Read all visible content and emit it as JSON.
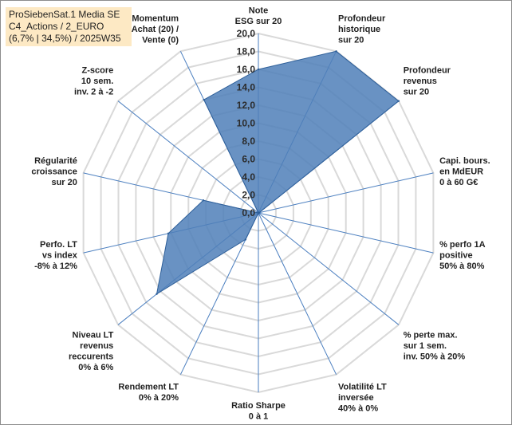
{
  "title_lines": [
    "ProSiebenSat.1 Media SE",
    "C4_Actions / 2_EURO",
    "(6,7% | 34,5%) / 2025W35"
  ],
  "colors": {
    "fill": "#4f7fb8",
    "stroke": "#2e5f99",
    "grid": "#d9d9d9",
    "spoke": "#4a7ebf"
  },
  "chart_data": {
    "type": "radar",
    "rmin": 0,
    "rmax": 20,
    "ticks": [
      "0,0",
      "2,0",
      "4,0",
      "6,0",
      "8,0",
      "10,0",
      "12,0",
      "14,0",
      "16,0",
      "18,0",
      "20,0"
    ],
    "axes": [
      {
        "label": [
          "Note",
          "ESG sur 20"
        ],
        "value": 16.0
      },
      {
        "label": [
          "Profondeur",
          "historique",
          "sur 20"
        ],
        "value": 20.0
      },
      {
        "label": [
          "Profondeur",
          "revenus",
          "sur 20"
        ],
        "value": 20.0
      },
      {
        "label": [
          "Capi. bours.",
          "en MdEUR",
          "0 à 60 G€"
        ],
        "value": 0.1
      },
      {
        "label": [
          "% perfo 1A",
          "positive",
          "50% à 80%"
        ],
        "value": 0.0
      },
      {
        "label": [
          "% perte max.",
          "sur 1 sem.",
          "inv. 50% à 20%"
        ],
        "value": 0.0
      },
      {
        "label": [
          "Volatilité LT",
          "inversée",
          "40% à 0%"
        ],
        "value": 0.0
      },
      {
        "label": [
          "Ratio Sharpe",
          "0 à 1"
        ],
        "value": 0.0
      },
      {
        "label": [
          "Rendement LT",
          "0% à 20%"
        ],
        "value": 3.3
      },
      {
        "label": [
          "Niveau LT",
          "revenus",
          "reccurents",
          "0% à 6%"
        ],
        "value": 14.5
      },
      {
        "label": [
          "Perfo. LT",
          "vs index",
          "-8% à 12%"
        ],
        "value": 10.3
      },
      {
        "label": [
          "Régularité",
          "croissance",
          "sur 20"
        ],
        "value": 6.3
      },
      {
        "label": [
          "Z-score",
          "10 sem.",
          "inv. 2 à -2"
        ],
        "value": 0.0
      },
      {
        "label": [
          "Momentum",
          "Achat (20) /",
          "Vente (0)"
        ],
        "value": 14.0
      }
    ]
  }
}
